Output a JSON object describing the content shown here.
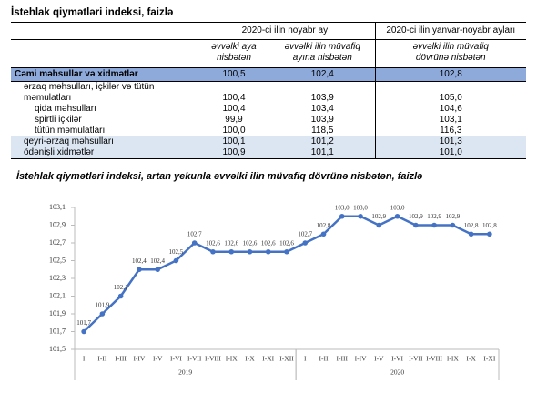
{
  "table": {
    "title": "İstehlak qiymətləri indeksi, faizlə",
    "header": {
      "groups": [
        "2020-ci ilin noyabr ayı",
        "2020-ci ilin yanvar-noyabr ayları"
      ],
      "columns": [
        "əvvəlki aya nisbətən",
        "əvvəlki ilin müvafiq ayına nisbətən",
        "əvvəlki ilin müvafiq dövrünə nisbətən"
      ]
    },
    "rows": [
      [
        "Cəmi məhsullar və xidmətlər",
        "100,5",
        "102,4",
        "102,8"
      ],
      [
        "ərzaq məhsulları, içkilər və tütün məmulatları",
        "100,4",
        "103,9",
        "105,0"
      ],
      [
        "qida məhsulları",
        "100,4",
        "103,4",
        "104,6"
      ],
      [
        "spirtli içkilər",
        "99,9",
        "103,9",
        "103,1"
      ],
      [
        "tütün məmulatları",
        "100,0",
        "118,5",
        "116,3"
      ],
      [
        "qeyri-ərzaq məhsulları",
        "100,1",
        "101,2",
        "101,3"
      ],
      [
        "ödənişli xidmətlər",
        "100,9",
        "101,1",
        "101,0"
      ]
    ]
  },
  "chart_data": {
    "type": "line",
    "title": "İstehlak qiymətləri indeksi, artan yekunla əvvəlki ilin müvafiq dövrünə nisbətən, faizlə",
    "groups": [
      {
        "label": "2019",
        "categories": [
          "I",
          "I-II",
          "I-III",
          "I-IV",
          "I-V",
          "I-VI",
          "I-VII",
          "I-VIII",
          "I-IX",
          "I-X",
          "I-XI",
          "I-XII"
        ]
      },
      {
        "label": "2020",
        "categories": [
          "I",
          "I-II",
          "I-III",
          "I-IV",
          "I-V",
          "I-VI",
          "I-VII",
          "I-VIII",
          "I-IX",
          "I-X",
          "I-XI"
        ]
      }
    ],
    "color": "#4472c4",
    "values": [
      101.7,
      101.9,
      102.1,
      102.4,
      102.4,
      102.5,
      102.7,
      102.6,
      102.6,
      102.6,
      102.6,
      102.6,
      102.7,
      102.8,
      103.0,
      103.0,
      102.9,
      103.0,
      102.9,
      102.9,
      102.9,
      102.8,
      102.8
    ],
    "value_labels": [
      "101,7",
      "101,9",
      "102,1",
      "102,4",
      "102,4",
      "102,5",
      "102,7",
      "102,6",
      "102,6",
      "102,6",
      "102,6",
      "102,6",
      "102,7",
      "102,8",
      "103,0",
      "103,0",
      "102,9",
      "103,0",
      "102,9",
      "102,9",
      "102,9",
      "102,8",
      "102,8"
    ],
    "ylim": [
      101.5,
      103.1
    ],
    "yticks": [
      {
        "value": 101.5,
        "label": "101,5"
      },
      {
        "value": 101.7,
        "label": "101,7"
      },
      {
        "value": 101.9,
        "label": "101,9"
      },
      {
        "value": 102.1,
        "label": "102,1"
      },
      {
        "value": 102.3,
        "label": "102,3"
      },
      {
        "value": 102.5,
        "label": "102,5"
      },
      {
        "value": 102.7,
        "label": "102,7"
      },
      {
        "value": 102.9,
        "label": "102,9"
      },
      {
        "value": 103.1,
        "label": "103,1"
      }
    ]
  }
}
